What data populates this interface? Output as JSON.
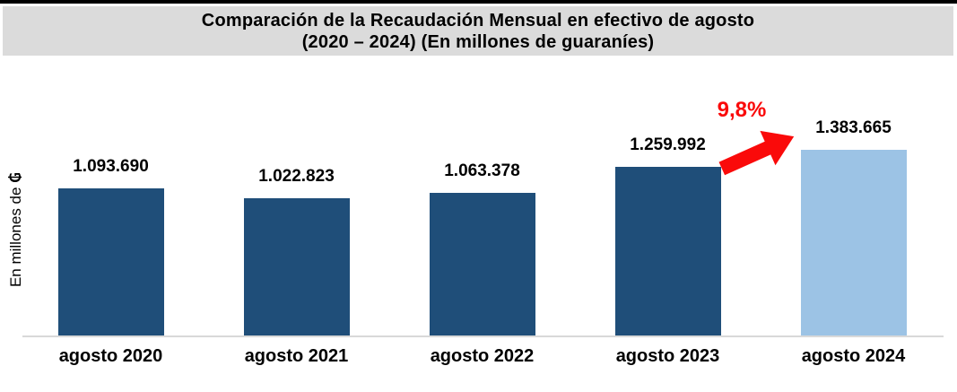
{
  "title": {
    "line1": "Comparación de la Recaudación Mensual en efectivo de agosto",
    "line2": "(2020 – 2024) (En millones de guaraníes)"
  },
  "y_axis": {
    "label": "En millones de ",
    "symbol": "₲"
  },
  "annotation": {
    "percent_change": "9,8%"
  },
  "colors": {
    "bar_default": "#1F4E79",
    "bar_highlight": "#9CC3E5",
    "accent_red": "#FA0A0A",
    "title_band": "#DBDBDB",
    "baseline": "#D9D9D9",
    "top_strip": "#000000",
    "text": "#000000"
  },
  "chart_data": {
    "type": "bar",
    "title": "Comparación de la Recaudación Mensual en efectivo de agosto (2020 – 2024) (En millones de guaraníes)",
    "categories": [
      "agosto 2020",
      "agosto 2021",
      "agosto 2022",
      "agosto 2023",
      "agosto 2024"
    ],
    "values": [
      1093690,
      1022823,
      1063378,
      1259992,
      1383665
    ],
    "value_labels": [
      "1.093.690",
      "1.022.823",
      "1.063.378",
      "1.259.992",
      "1.383.665"
    ],
    "bar_colors": [
      "#1F4E79",
      "#1F4E79",
      "#1F4E79",
      "#1F4E79",
      "#9CC3E5"
    ],
    "xlabel": "",
    "ylabel": "En millones de ₲",
    "ylim": [
      0,
      1450000
    ],
    "grid": false,
    "legend": false,
    "annotation": {
      "text": "9,8%",
      "applies_to": "agosto 2024",
      "color": "#FA0A0A",
      "icon": "block-arrow-up-right"
    }
  }
}
